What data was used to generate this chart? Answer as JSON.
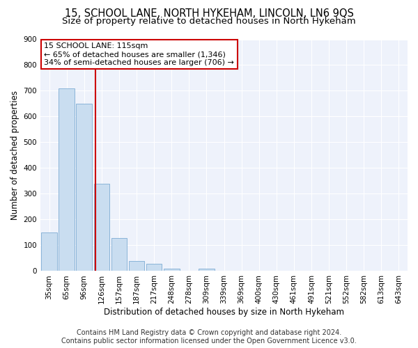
{
  "title": "15, SCHOOL LANE, NORTH HYKEHAM, LINCOLN, LN6 9QS",
  "subtitle": "Size of property relative to detached houses in North Hykeham",
  "xlabel": "Distribution of detached houses by size in North Hykeham",
  "ylabel": "Number of detached properties",
  "categories": [
    "35sqm",
    "65sqm",
    "96sqm",
    "126sqm",
    "157sqm",
    "187sqm",
    "217sqm",
    "248sqm",
    "278sqm",
    "309sqm",
    "339sqm",
    "369sqm",
    "400sqm",
    "430sqm",
    "461sqm",
    "491sqm",
    "521sqm",
    "552sqm",
    "582sqm",
    "613sqm",
    "643sqm"
  ],
  "values": [
    150,
    710,
    650,
    340,
    128,
    40,
    28,
    10,
    0,
    8,
    0,
    0,
    0,
    0,
    0,
    0,
    0,
    0,
    0,
    0,
    0
  ],
  "bar_color": "#c9ddf0",
  "bar_edge_color": "#8ab4d8",
  "vline_x": 2.63,
  "vline_color": "#cc0000",
  "annotation_text": "15 SCHOOL LANE: 115sqm\n← 65% of detached houses are smaller (1,346)\n34% of semi-detached houses are larger (706) →",
  "annotation_box_color": "#ffffff",
  "annotation_box_edge": "#cc0000",
  "ylim": [
    0,
    900
  ],
  "yticks": [
    0,
    100,
    200,
    300,
    400,
    500,
    600,
    700,
    800,
    900
  ],
  "footer_line1": "Contains HM Land Registry data © Crown copyright and database right 2024.",
  "footer_line2": "Contains public sector information licensed under the Open Government Licence v3.0.",
  "bg_color": "#ffffff",
  "plot_bg_color": "#eef2fb",
  "grid_color": "#ffffff",
  "title_fontsize": 10.5,
  "subtitle_fontsize": 9.5,
  "axis_label_fontsize": 8.5,
  "tick_fontsize": 7.5,
  "annotation_fontsize": 8,
  "footer_fontsize": 7
}
